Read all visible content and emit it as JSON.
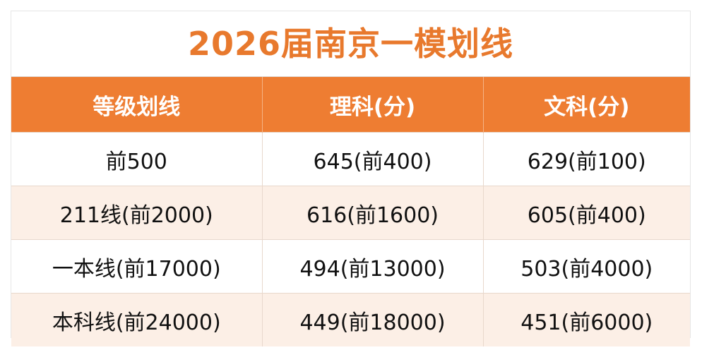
{
  "header": {
    "title": "2026届南京一模划线"
  },
  "table": {
    "columns": [
      "等级划线",
      "理科(分)",
      "文科(分)"
    ],
    "rows": [
      [
        "前500",
        "645(前400)",
        "629(前100)"
      ],
      [
        "211线(前2000)",
        "616(前1600)",
        "605(前400)"
      ],
      [
        "一本线(前17000)",
        "494(前13000)",
        "503(前4000)"
      ],
      [
        "本科线(前24000)",
        "449(前18000)",
        "451(前6000)"
      ]
    ]
  }
}
